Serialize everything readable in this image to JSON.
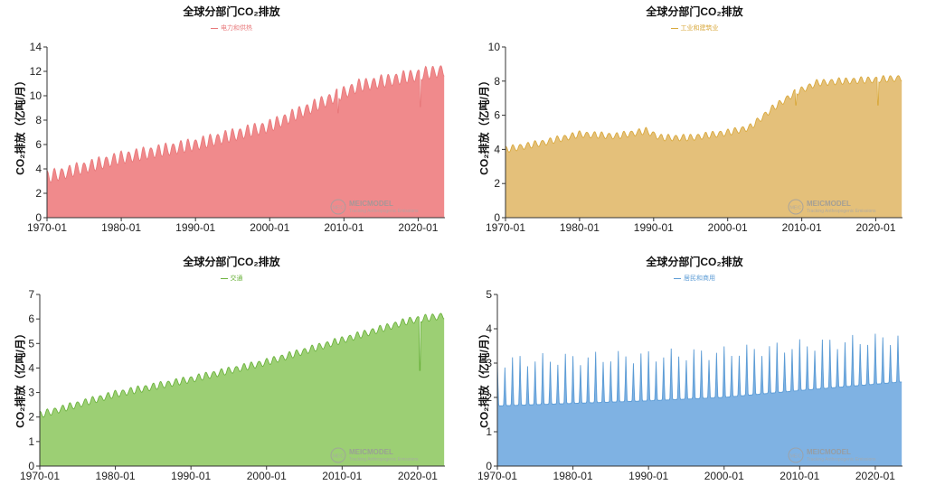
{
  "chart_data": [
    {
      "type": "area",
      "title": "全球分部门CO₂排放",
      "legend": "电力和供热",
      "ylabel": "CO₂排放（亿吨/月）",
      "color": "#e8797b",
      "fill": "#f08a8c",
      "ylim": [
        0,
        14
      ],
      "yticks": [
        0,
        2,
        4,
        6,
        8,
        10,
        12,
        14
      ],
      "xticks": [
        "1970-01",
        "1980-01",
        "1990-01",
        "2000-01",
        "2010-01",
        "2020-01"
      ],
      "xlim": [
        1970,
        2023.6
      ],
      "trend": [
        [
          1970,
          2.8
        ],
        [
          1980,
          4.4
        ],
        [
          1990,
          5.5
        ],
        [
          2000,
          7.0
        ],
        [
          2008,
          9.2
        ],
        [
          2012,
          10.3
        ],
        [
          2020,
          11.2
        ],
        [
          2023.5,
          11.6
        ]
      ],
      "amplitude": 1.1,
      "dips": [
        {
          "x": 2020.3,
          "y": 9.1
        },
        {
          "x": 2009.2,
          "y": 8.6
        }
      ],
      "watermark": [
        "MEICMODEL",
        "Tracking Anthropogenic Emissions"
      ]
    },
    {
      "type": "area",
      "title": "全球分部门CO₂排放",
      "legend": "工业和建筑业",
      "ylabel": "CO₂排放（亿吨/月）",
      "color": "#d9a93e",
      "fill": "#e4c07a",
      "ylim": [
        0,
        10
      ],
      "yticks": [
        0,
        2,
        4,
        6,
        8,
        10
      ],
      "xticks": [
        "1970-01",
        "1980-01",
        "1990-01",
        "2000-01",
        "2010-01",
        "2020-01"
      ],
      "xlim": [
        1970,
        2023.6
      ],
      "trend": [
        [
          1970,
          3.8
        ],
        [
          1975,
          4.2
        ],
        [
          1980,
          4.7
        ],
        [
          1985,
          4.6
        ],
        [
          1989,
          4.9
        ],
        [
          1991,
          4.5
        ],
        [
          1995,
          4.5
        ],
        [
          2000,
          4.8
        ],
        [
          2003,
          5.1
        ],
        [
          2006,
          6.2
        ],
        [
          2009,
          7.1
        ],
        [
          2012,
          7.7
        ],
        [
          2015,
          7.8
        ],
        [
          2020,
          7.9
        ],
        [
          2023.5,
          8.0
        ]
      ],
      "amplitude": 0.4,
      "dips": [
        {
          "x": 2020.3,
          "y": 6.6
        },
        {
          "x": 2009.2,
          "y": 6.6
        }
      ],
      "watermark": [
        "MEICMODEL",
        "Tracking Anthropogenic Emissions"
      ]
    },
    {
      "type": "area",
      "title": "全球分部门CO₂排放",
      "legend": "交通",
      "ylabel": "CO₂排放（亿吨/月）",
      "color": "#6db33f",
      "fill": "#9ccf74",
      "ylim": [
        0,
        7
      ],
      "yticks": [
        0,
        1,
        2,
        3,
        4,
        5,
        6,
        7
      ],
      "xticks": [
        "1970-01",
        "1980-01",
        "1990-01",
        "2000-01",
        "2010-01",
        "2020-01"
      ],
      "xlim": [
        1970,
        2023.6
      ],
      "trend": [
        [
          1970,
          1.95
        ],
        [
          1980,
          2.8
        ],
        [
          1990,
          3.4
        ],
        [
          2000,
          4.1
        ],
        [
          2010,
          5.0
        ],
        [
          2019,
          5.8
        ],
        [
          2023.5,
          6.0
        ]
      ],
      "amplitude": 0.3,
      "dips": [
        {
          "x": 2020.3,
          "y": 3.9
        }
      ],
      "watermark": [
        "MEICMODEL",
        "Tracking Anthropogenic Emissions"
      ]
    },
    {
      "type": "area",
      "title": "全球分部门CO₂排放",
      "legend": "居民和商用",
      "ylabel": "CO₂排放（亿吨/月）",
      "color": "#5b9bd5",
      "fill": "#7fb2e3",
      "ylim": [
        0,
        5
      ],
      "yticks": [
        0,
        1,
        2,
        3,
        4,
        5
      ],
      "xticks": [
        "1970-01",
        "1980-01",
        "1990-01",
        "2000-01",
        "2010-01",
        "2020-01"
      ],
      "xlim": [
        1970,
        2023.6
      ],
      "trend": [
        [
          1970,
          1.75
        ],
        [
          1990,
          1.9
        ],
        [
          2000,
          2.0
        ],
        [
          2010,
          2.2
        ],
        [
          2023.5,
          2.45
        ]
      ],
      "amplitude": 1.3,
      "dips": [],
      "seasonal": "spiky",
      "watermark": [
        "MEICMODEL",
        "Tracking Anthropogenic Emissions"
      ]
    }
  ]
}
